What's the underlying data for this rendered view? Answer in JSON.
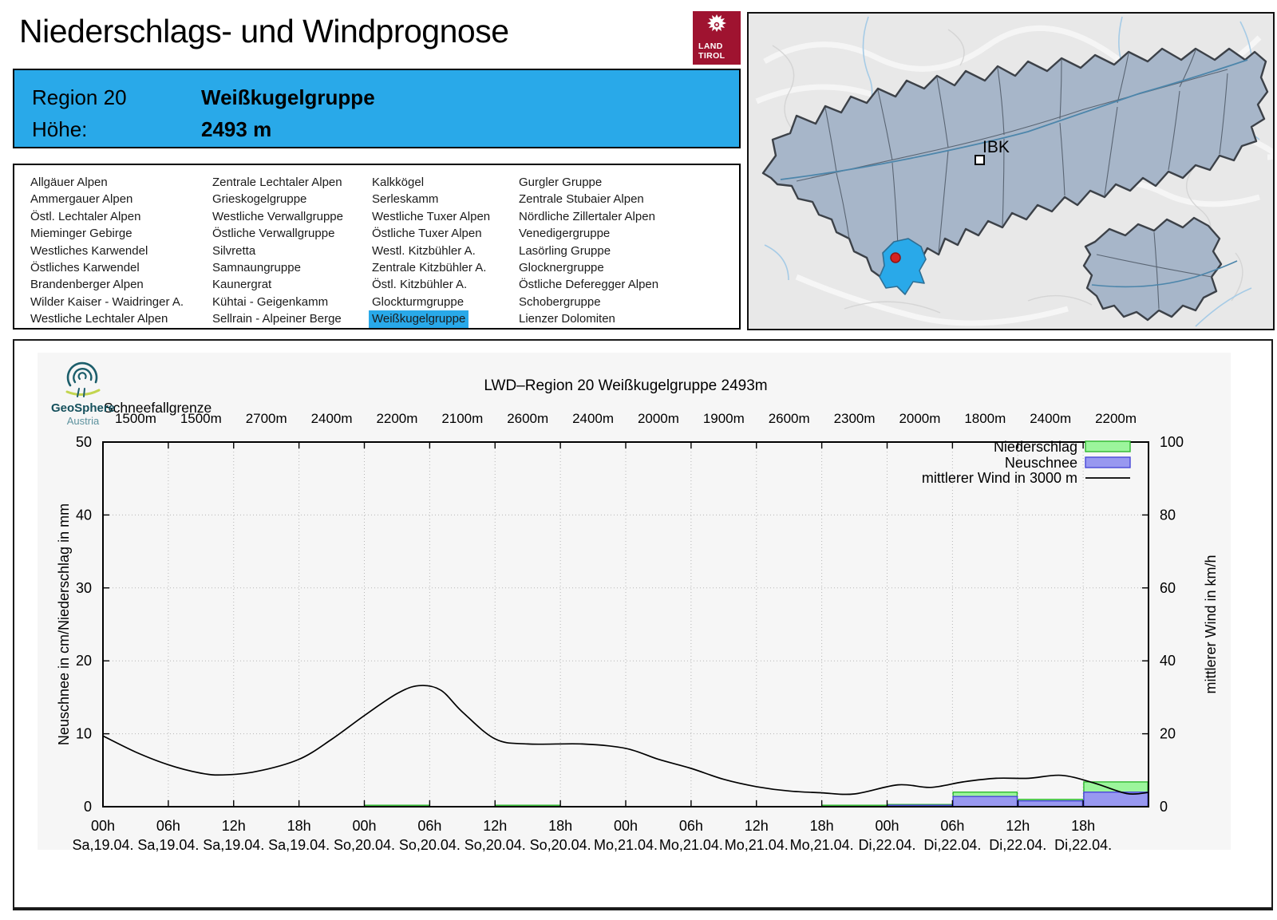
{
  "page": {
    "title": "Niederschlags- und Windprognose"
  },
  "logo_tirol": {
    "line1": "LAND",
    "line2": "TIROL"
  },
  "info_box": {
    "region_label": "Region 20",
    "region_name": "Weißkugelgruppe",
    "altitude_label": "Höhe:",
    "altitude_value": "2493 m"
  },
  "region_list": {
    "selected": "Weißkugelgruppe",
    "columns": [
      [
        "Allgäuer Alpen",
        "Ammergauer Alpen",
        "Östl. Lechtaler Alpen",
        "Mieminger Gebirge",
        "Westliches Karwendel",
        "Östliches Karwendel",
        "Brandenberger Alpen",
        "Wilder Kaiser - Waidringer A.",
        "Westliche Lechtaler Alpen"
      ],
      [
        "Zentrale Lechtaler Alpen",
        "Grieskogelgruppe",
        "Westliche Verwallgruppe",
        "Östliche Verwallgruppe",
        "Silvretta",
        "Samnaungruppe",
        "Kaunergrat",
        "Kühtai - Geigenkamm",
        "Sellrain - Alpeiner Berge"
      ],
      [
        "Kalkkögel",
        "Serleskamm",
        "Westliche Tuxer Alpen",
        "Östliche Tuxer Alpen",
        "Westl. Kitzbühler A.",
        "Zentrale Kitzbühler A.",
        "Östl. Kitzbühler A.",
        "Glockturmgruppe",
        "Weißkugelgruppe"
      ],
      [
        "Gurgler Gruppe",
        "Zentrale Stubaier Alpen",
        "Nördliche Zillertaler Alpen",
        "Venedigergruppe",
        "Lasörling Gruppe",
        "Glocknergruppe",
        "Östliche Deferegger Alpen",
        "Schobergruppe",
        "Lienzer Dolomiten"
      ]
    ]
  },
  "map": {
    "city_label": "IBK",
    "highlight_color": "#29a9e9",
    "marker_color": "#d42222"
  },
  "geosphere": {
    "name": "GeoSphere",
    "country": "Austria"
  },
  "chart_data": {
    "type": "bar",
    "title": "LWD–Region 20 Weißkugelgruppe 2493m",
    "snowline_label": "Schneefallgrenze",
    "snowline_values": [
      "1500m",
      "1500m",
      "2700m",
      "2400m",
      "2200m",
      "2100m",
      "2600m",
      "2400m",
      "2000m",
      "1900m",
      "2600m",
      "2300m",
      "2000m",
      "1800m",
      "2400m",
      "2200m"
    ],
    "x_tick_times": [
      "00h",
      "06h",
      "12h",
      "18h",
      "00h",
      "06h",
      "12h",
      "18h",
      "00h",
      "06h",
      "12h",
      "18h",
      "00h",
      "06h",
      "12h",
      "18h"
    ],
    "x_tick_dates": [
      "Sa,19.04.",
      "Sa,19.04.",
      "Sa,19.04.",
      "Sa,19.04.",
      "So,20.04.",
      "So,20.04.",
      "So,20.04.",
      "So,20.04.",
      "Mo,21.04.",
      "Mo,21.04.",
      "Mo,21.04.",
      "Mo,21.04.",
      "Di,22.04.",
      "Di,22.04.",
      "Di,22.04.",
      "Di,22.04."
    ],
    "ylabel_left": "Neuschnee in cm/Niederschlag in mm",
    "ylabel_right": "mittlerer Wind in km/h",
    "ylim_left": [
      0,
      50
    ],
    "ylim_right": [
      0,
      100
    ],
    "yticks_left": [
      0,
      10,
      20,
      30,
      40,
      50
    ],
    "yticks_right": [
      0,
      20,
      40,
      60,
      80,
      100
    ],
    "grid": true,
    "legend_position": "top-right",
    "legend": [
      {
        "label": "Niederschlag",
        "fill": "#9cf59c",
        "border": "#2eb82e",
        "kind": "box"
      },
      {
        "label": "Neuschnee",
        "fill": "#9898f0",
        "border": "#4848d8",
        "kind": "box"
      },
      {
        "label": "mittlerer Wind in 3000 m",
        "fill": "#000000",
        "border": "#000000",
        "kind": "line"
      }
    ],
    "series": [
      {
        "name": "Niederschlag (mm, 6h)",
        "values": [
          0,
          0,
          0,
          0,
          0.2,
          0,
          0.2,
          0,
          0,
          0,
          0,
          0.2,
          0.3,
          2.0,
          1.0,
          3.4
        ]
      },
      {
        "name": "Neuschnee (cm, 6h)",
        "values": [
          0,
          0,
          0,
          0,
          0,
          0,
          0,
          0,
          0,
          0,
          0,
          0,
          0.2,
          1.4,
          0.8,
          2.0
        ]
      },
      {
        "name": "mittlerer Wind in 3000 m (km/h)",
        "points_hour_kmh": [
          [
            0,
            19.4
          ],
          [
            3,
            15
          ],
          [
            6,
            11.5
          ],
          [
            9,
            9.2
          ],
          [
            11,
            8.7
          ],
          [
            14,
            9.6
          ],
          [
            18,
            13
          ],
          [
            21,
            18.5
          ],
          [
            24,
            25
          ],
          [
            27,
            31
          ],
          [
            29,
            33.2
          ],
          [
            31,
            32
          ],
          [
            33,
            26
          ],
          [
            36,
            18.6
          ],
          [
            39,
            17.2
          ],
          [
            44,
            17.2
          ],
          [
            48,
            16
          ],
          [
            51,
            13
          ],
          [
            54,
            10.5
          ],
          [
            57,
            7.5
          ],
          [
            60,
            5.5
          ],
          [
            63,
            4.3
          ],
          [
            66,
            3.8
          ],
          [
            69,
            3.5
          ],
          [
            73,
            6
          ],
          [
            76,
            5.3
          ],
          [
            79,
            6.8
          ],
          [
            82,
            7.8
          ],
          [
            85,
            7.8
          ],
          [
            88,
            8.6
          ],
          [
            91,
            6.5
          ],
          [
            94,
            3.6
          ],
          [
            96,
            3.9
          ]
        ]
      }
    ]
  }
}
